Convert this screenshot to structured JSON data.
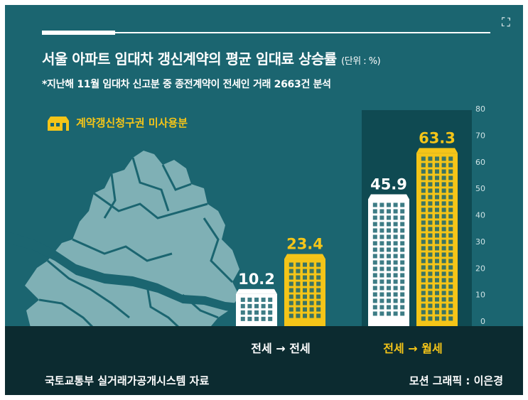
{
  "title": "서울 아파트 임대차 갱신계약의 평균 임대료 상승률",
  "unit_note": "(단위 : %)",
  "subtitle": "*지난해 11월 임대차 신고분 중 종전계약이 전세인 거래 2663건 분석",
  "legend_label": "계약갱신청구권 미사용분",
  "source": "국토교통부 실거래가공개시스템 자료",
  "credit": "모션 그래픽 : 이은경",
  "colors": {
    "background": "#1b6570",
    "highlight_band": "#0f4a52",
    "ground": "#0c2b30",
    "used_bar": "#ffffff",
    "unused_bar": "#f5c518",
    "map": "#7fb0b5"
  },
  "chart_data": {
    "type": "bar",
    "categories": [
      "전세 → 전세",
      "전세 → 월세"
    ],
    "series": [
      {
        "name": "",
        "values": [
          10.2,
          45.9
        ]
      },
      {
        "name": "계약갱신청구권 미사용분",
        "values": [
          23.4,
          63.3
        ]
      }
    ],
    "ylim": [
      0,
      80
    ],
    "yticks": [
      0,
      10,
      20,
      30,
      40,
      50,
      60,
      70,
      80
    ],
    "highlighted_category": "전세 → 월세",
    "axis_position": "right",
    "grid": false
  }
}
